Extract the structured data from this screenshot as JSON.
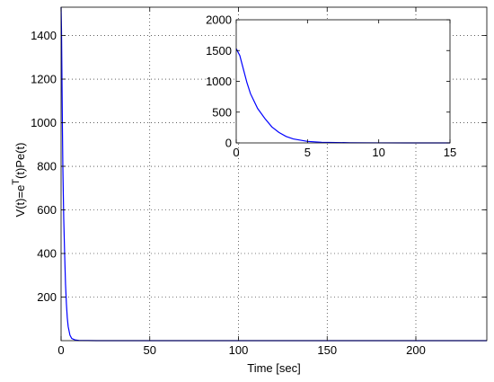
{
  "chart_data": [
    {
      "id": "main",
      "type": "line",
      "xlabel": "Time [sec]",
      "ylabel": "V(t)=e^T(t)Pe(t)",
      "ylabel_parts": {
        "pre": "V(t)=e",
        "sup": "T",
        "post": "(t)Pe(t)"
      },
      "xlim": [
        0,
        240
      ],
      "ylim": [
        0,
        1530
      ],
      "xticks": [
        0,
        50,
        100,
        150,
        200
      ],
      "yticks": [
        200,
        400,
        600,
        800,
        1000,
        1200,
        1400
      ],
      "grid": true,
      "series": [
        {
          "color": "#0000ff",
          "x": [
            0,
            0.25,
            0.5,
            0.75,
            1,
            1.5,
            2,
            2.5,
            3,
            3.5,
            4,
            5,
            6,
            8,
            10,
            20,
            50,
            100,
            150,
            200,
            240
          ],
          "y": [
            1530,
            1420,
            1200,
            980,
            800,
            560,
            400,
            260,
            170,
            105,
            65,
            25,
            10,
            3,
            1,
            0,
            0,
            0,
            0,
            0,
            0
          ]
        }
      ]
    },
    {
      "id": "inset",
      "type": "line",
      "xlim": [
        0,
        15
      ],
      "ylim": [
        0,
        2000
      ],
      "xticks": [
        0,
        5,
        10,
        15
      ],
      "yticks": [
        0,
        500,
        1000,
        1500,
        2000
      ],
      "grid": false,
      "series": [
        {
          "color": "#0000ff",
          "x": [
            0,
            0.25,
            0.5,
            0.75,
            1,
            1.5,
            2,
            2.5,
            3,
            3.5,
            4,
            5,
            6,
            8,
            10,
            12,
            15
          ],
          "y": [
            1530,
            1420,
            1200,
            980,
            800,
            560,
            400,
            260,
            170,
            105,
            65,
            25,
            10,
            3,
            1,
            0,
            0
          ]
        }
      ]
    }
  ]
}
